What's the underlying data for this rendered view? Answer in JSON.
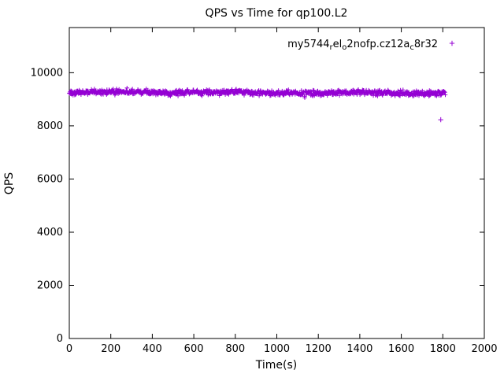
{
  "page": {
    "background": "#ffffff"
  },
  "chart_data": {
    "type": "scatter",
    "title": "QPS vs Time for qp100.L2",
    "xlabel": "Time(s)",
    "ylabel": "QPS",
    "xlim": [
      0,
      2000
    ],
    "ylim": [
      0,
      11700
    ],
    "xticks": [
      0,
      200,
      400,
      600,
      800,
      1000,
      1200,
      1400,
      1600,
      1800,
      2000
    ],
    "yticks": [
      0,
      2000,
      4000,
      6000,
      8000,
      10000
    ],
    "grid": false,
    "legend_position": "top-right",
    "series": [
      {
        "name": "my5744_rel_o2nofp.cz12a_c8r32",
        "label_segments": [
          {
            "t": "my5744"
          },
          {
            "t": "r",
            "sub": true
          },
          {
            "t": "el"
          },
          {
            "t": "o",
            "sub": true
          },
          {
            "t": "2nofp.cz12a"
          },
          {
            "t": "c",
            "sub": true
          },
          {
            "t": "8r32"
          }
        ],
        "color": "#9400D3",
        "marker": "plus",
        "band": {
          "x_start": 0,
          "x_end": 1812,
          "n_points": 900,
          "y_mean": 9255,
          "y_wave_amp": 22,
          "y_jitter": 115,
          "seed": 1337
        },
        "outliers": [
          [
            1790,
            8230
          ]
        ]
      }
    ]
  }
}
